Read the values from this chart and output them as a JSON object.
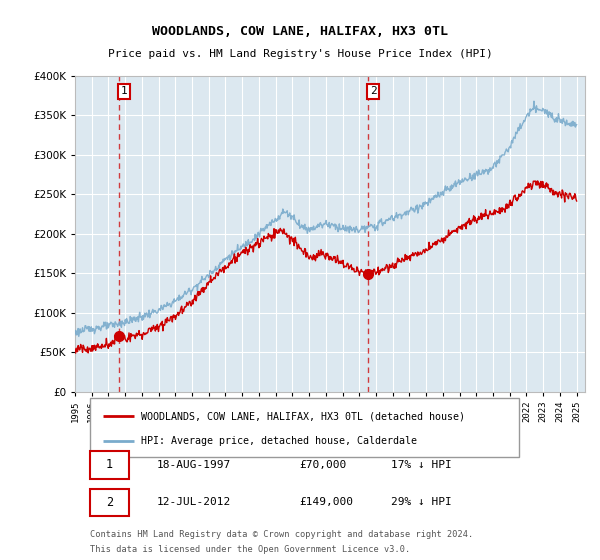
{
  "title": "WOODLANDS, COW LANE, HALIFAX, HX3 0TL",
  "subtitle": "Price paid vs. HM Land Registry's House Price Index (HPI)",
  "legend_line1": "WOODLANDS, COW LANE, HALIFAX, HX3 0TL (detached house)",
  "legend_line2": "HPI: Average price, detached house, Calderdale",
  "footnote1": "Contains HM Land Registry data © Crown copyright and database right 2024.",
  "footnote2": "This data is licensed under the Open Government Licence v3.0.",
  "sale1_label": "1",
  "sale1_date": "18-AUG-1997",
  "sale1_price": "£70,000",
  "sale1_hpi": "17% ↓ HPI",
  "sale2_label": "2",
  "sale2_date": "12-JUL-2012",
  "sale2_price": "£149,000",
  "sale2_hpi": "29% ↓ HPI",
  "sale1_year": 1997.62,
  "sale1_value": 70000,
  "sale2_year": 2012.53,
  "sale2_value": 149000,
  "ylim": [
    0,
    400000
  ],
  "xlim_start": 1995.0,
  "xlim_end": 2025.5,
  "red_color": "#cc0000",
  "blue_color": "#7aabcc",
  "bg_color": "#dce8f0",
  "grid_color": "#ffffff",
  "title_color": "#000000"
}
